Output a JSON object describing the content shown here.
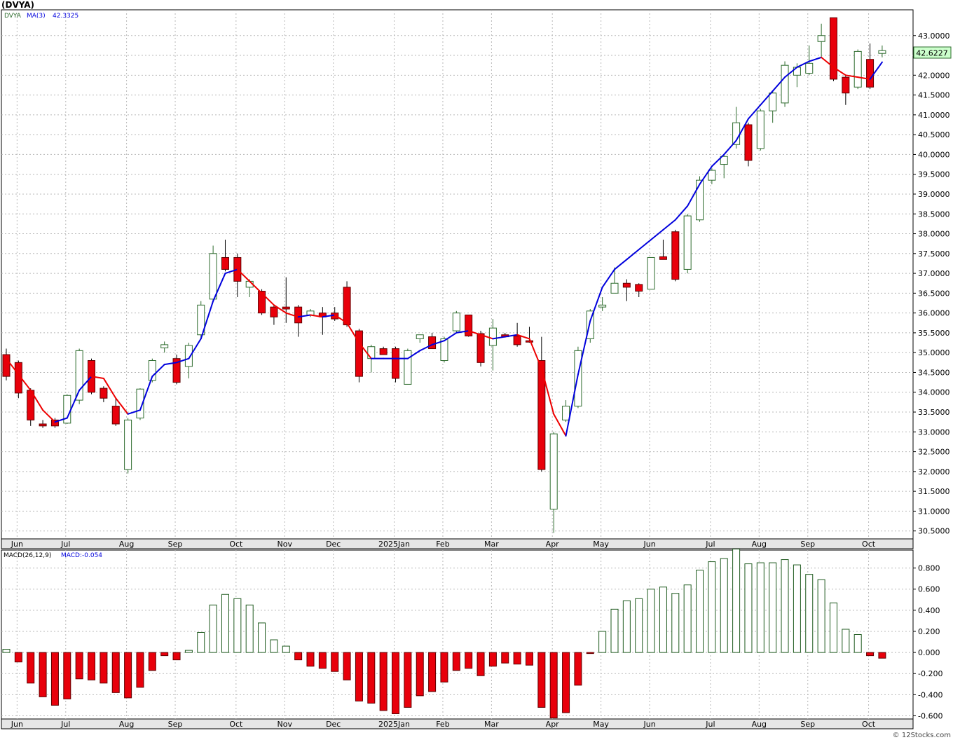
{
  "header": {
    "symbol_title": "(DVYA)",
    "legend_symbol": "DVYA",
    "legend_ma_label": "MA(3)",
    "legend_ma_value": "42.3325",
    "last_price_label": "42.6227",
    "macd_label": "MACD(26,12,9)",
    "macd_value_label": "MACD:-0.054",
    "watermark": "© 12Stocks.com"
  },
  "colors": {
    "up_candle": "#2d6b2d",
    "down_candle": "#e8000b",
    "ma_up": "#0000dd",
    "ma_down": "#ee0000",
    "macd_pos": "#1e5a1e",
    "macd_neg": "#e8000b",
    "grid": "#b8b8b8",
    "price_badge_bg": "#ccffcc"
  },
  "chart_data": [
    {
      "type": "candlestick",
      "title": "(DVYA)",
      "interval": "weekly",
      "x_tick_labels": [
        "Jun",
        "Jul",
        "Aug",
        "Sep",
        "Oct",
        "Nov",
        "Dec",
        "2025Jan",
        "Feb",
        "Mar",
        "Apr",
        "May",
        "Jun",
        "Jul",
        "Aug",
        "Sep",
        "Oct"
      ],
      "x_tick_week_index": [
        1,
        5,
        10,
        14,
        19,
        23,
        27,
        32,
        36,
        40,
        45,
        49,
        53,
        58,
        62,
        66,
        71
      ],
      "y_ticks": [
        30.5,
        31.0,
        31.5,
        32.0,
        32.5,
        33.0,
        33.5,
        34.0,
        34.5,
        35.0,
        35.5,
        36.0,
        36.5,
        37.0,
        37.5,
        38.0,
        38.5,
        39.0,
        39.5,
        40.0,
        40.5,
        41.0,
        41.5,
        42.0,
        42.5,
        43.0
      ],
      "ylim": [
        30.3,
        43.65
      ],
      "grid": true,
      "ohlc": [
        [
          34.95,
          35.1,
          34.3,
          34.4
        ],
        [
          34.75,
          34.8,
          33.85,
          33.98
        ],
        [
          34.05,
          34.1,
          33.15,
          33.3
        ],
        [
          33.2,
          33.3,
          33.1,
          33.15
        ],
        [
          33.3,
          33.35,
          33.1,
          33.15
        ],
        [
          33.22,
          33.95,
          33.2,
          33.92
        ],
        [
          33.8,
          35.1,
          33.7,
          35.05
        ],
        [
          34.8,
          34.85,
          33.95,
          34.0
        ],
        [
          34.1,
          34.15,
          33.75,
          33.85
        ],
        [
          33.65,
          33.85,
          33.15,
          33.2
        ],
        [
          32.05,
          33.35,
          31.95,
          33.3
        ],
        [
          33.35,
          34.1,
          33.3,
          34.08
        ],
        [
          34.3,
          34.85,
          34.25,
          34.8
        ],
        [
          35.12,
          35.28,
          35.0,
          35.2
        ],
        [
          34.85,
          34.95,
          34.2,
          34.25
        ],
        [
          34.65,
          35.25,
          34.35,
          35.18
        ],
        [
          35.45,
          36.3,
          35.35,
          36.2
        ],
        [
          36.35,
          37.7,
          36.3,
          37.5
        ],
        [
          37.4,
          37.85,
          37.05,
          37.1
        ],
        [
          37.4,
          37.5,
          36.4,
          36.8
        ],
        [
          36.65,
          36.85,
          36.4,
          36.8
        ],
        [
          36.55,
          36.6,
          35.95,
          36.0
        ],
        [
          36.15,
          36.2,
          35.7,
          35.9
        ],
        [
          36.15,
          36.9,
          35.75,
          36.1
        ],
        [
          36.15,
          36.2,
          35.4,
          35.75
        ],
        [
          35.95,
          36.1,
          35.9,
          36.05
        ],
        [
          36.0,
          36.15,
          35.45,
          35.9
        ],
        [
          36.0,
          36.15,
          35.8,
          35.85
        ],
        [
          36.65,
          36.8,
          35.65,
          35.7
        ],
        [
          35.55,
          35.6,
          34.25,
          34.4
        ],
        [
          34.85,
          35.2,
          34.5,
          35.15
        ],
        [
          35.1,
          35.15,
          34.95,
          34.95
        ],
        [
          35.1,
          35.15,
          34.25,
          34.35
        ],
        [
          34.2,
          35.1,
          34.2,
          35.05
        ],
        [
          35.35,
          35.45,
          35.25,
          35.45
        ],
        [
          35.4,
          35.5,
          35.1,
          35.1
        ],
        [
          34.8,
          35.4,
          34.75,
          35.35
        ],
        [
          35.55,
          36.05,
          35.5,
          36.0
        ],
        [
          35.95,
          35.95,
          35.4,
          35.42
        ],
        [
          35.48,
          35.55,
          34.65,
          34.75
        ],
        [
          35.18,
          35.85,
          34.55,
          35.62
        ],
        [
          35.45,
          35.5,
          35.38,
          35.4
        ],
        [
          35.42,
          35.75,
          35.15,
          35.2
        ],
        [
          35.3,
          35.65,
          35.25,
          35.28
        ],
        [
          34.8,
          35.4,
          32.0,
          32.05
        ],
        [
          31.05,
          33.0,
          30.45,
          32.95
        ],
        [
          33.3,
          33.8,
          33.25,
          33.65
        ],
        [
          33.65,
          35.15,
          33.6,
          35.05
        ],
        [
          35.35,
          36.1,
          35.25,
          36.05
        ],
        [
          36.15,
          36.4,
          36.05,
          36.2
        ],
        [
          36.5,
          37.15,
          36.5,
          36.75
        ],
        [
          36.75,
          36.85,
          36.3,
          36.65
        ],
        [
          36.72,
          36.75,
          36.4,
          36.55
        ],
        [
          36.6,
          37.4,
          36.6,
          37.4
        ],
        [
          37.42,
          37.85,
          37.4,
          37.35
        ],
        [
          38.05,
          38.1,
          36.8,
          36.85
        ],
        [
          37.1,
          38.5,
          37.0,
          38.45
        ],
        [
          38.35,
          39.45,
          38.3,
          39.35
        ],
        [
          39.35,
          39.65,
          39.25,
          39.6
        ],
        [
          39.75,
          40.0,
          39.4,
          39.95
        ],
        [
          40.25,
          41.2,
          40.15,
          40.8
        ],
        [
          40.75,
          40.8,
          39.7,
          39.85
        ],
        [
          40.15,
          41.15,
          40.1,
          41.1
        ],
        [
          41.1,
          41.6,
          40.8,
          41.55
        ],
        [
          41.3,
          42.35,
          41.2,
          42.25
        ],
        [
          42.0,
          42.3,
          41.7,
          42.2
        ],
        [
          42.05,
          42.75,
          42.0,
          42.3
        ],
        [
          42.85,
          43.3,
          42.45,
          43.0
        ],
        [
          43.45,
          43.45,
          41.85,
          41.9
        ],
        [
          41.95,
          42.0,
          41.25,
          41.55
        ],
        [
          41.7,
          42.65,
          41.65,
          42.6
        ],
        [
          42.4,
          42.8,
          41.65,
          41.7
        ],
        [
          42.55,
          42.75,
          42.45,
          42.62
        ]
      ],
      "ma3": [
        34.85,
        34.45,
        34.05,
        33.55,
        33.25,
        33.35,
        34.05,
        34.4,
        34.35,
        33.85,
        33.45,
        33.55,
        34.4,
        34.7,
        34.75,
        34.85,
        35.35,
        36.3,
        37.0,
        37.1,
        36.8,
        36.5,
        36.2,
        36.0,
        35.9,
        35.95,
        35.9,
        35.95,
        35.75,
        35.25,
        34.85,
        34.85,
        34.85,
        34.85,
        35.05,
        35.2,
        35.3,
        35.5,
        35.55,
        35.45,
        35.35,
        35.4,
        35.45,
        35.35,
        34.6,
        33.45,
        32.9,
        34.45,
        35.8,
        36.65,
        37.1,
        37.35,
        37.6,
        37.85,
        38.1,
        38.35,
        38.7,
        39.25,
        39.7,
        40.0,
        40.35,
        40.9,
        41.25,
        41.6,
        41.95,
        42.2,
        42.35,
        42.45,
        42.2,
        42.0,
        41.95,
        41.9,
        42.33
      ]
    },
    {
      "type": "bar",
      "title": "MACD(26,12,9)",
      "last_value": -0.054,
      "y_ticks": [
        -0.6,
        -0.4,
        -0.2,
        0.0,
        0.2,
        0.4,
        0.6,
        0.8
      ],
      "ylim": [
        -0.63,
        0.97
      ],
      "grid": true,
      "values": [
        0.03,
        -0.09,
        -0.29,
        -0.42,
        -0.5,
        -0.44,
        -0.25,
        -0.26,
        -0.29,
        -0.38,
        -0.43,
        -0.33,
        -0.17,
        -0.03,
        -0.07,
        0.02,
        0.19,
        0.45,
        0.55,
        0.51,
        0.45,
        0.28,
        0.12,
        0.06,
        -0.07,
        -0.13,
        -0.15,
        -0.18,
        -0.26,
        -0.46,
        -0.48,
        -0.55,
        -0.58,
        -0.52,
        -0.41,
        -0.37,
        -0.28,
        -0.17,
        -0.15,
        -0.22,
        -0.13,
        -0.1,
        -0.11,
        -0.12,
        -0.52,
        -0.62,
        -0.57,
        -0.31,
        -0.01,
        0.2,
        0.41,
        0.49,
        0.51,
        0.6,
        0.62,
        0.56,
        0.64,
        0.78,
        0.86,
        0.89,
        0.98,
        0.84,
        0.85,
        0.85,
        0.88,
        0.83,
        0.74,
        0.69,
        0.47,
        0.22,
        0.17,
        -0.03,
        -0.054
      ]
    }
  ]
}
